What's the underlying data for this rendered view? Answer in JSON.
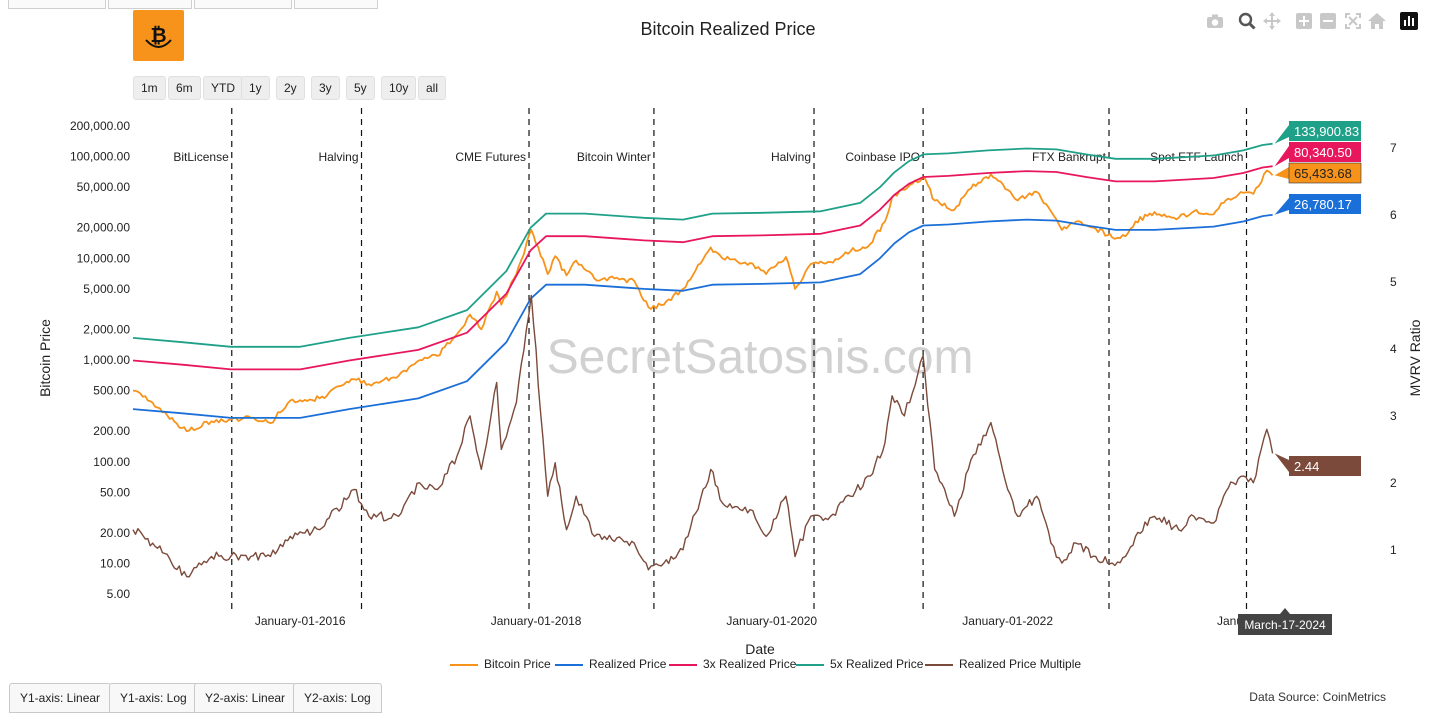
{
  "header": {
    "title": "Bitcoin Realized Price"
  },
  "range_buttons": [
    "1m",
    "6m",
    "YTD",
    "1y",
    "2y",
    "3y",
    "5y",
    "10y",
    "all"
  ],
  "modebar_icons": [
    "camera-icon",
    "zoom-icon",
    "pan-icon",
    "zoom-in-icon",
    "zoom-out-icon",
    "autoscale-icon",
    "home-icon",
    "logo-icon"
  ],
  "axis_buttons": [
    "Y1-axis: Linear",
    "Y1-axis: Log",
    "Y2-axis: Linear",
    "Y2-axis: Log"
  ],
  "source": "Data Source: CoinMetrics",
  "watermark": "SecretSatoshis.com",
  "colors": {
    "bitcoin_price": "#f7931a",
    "realized_price": "#1b6fd8",
    "realized_3x": "#e8175d",
    "realized_5x": "#1fa189",
    "multiple": "#7b4a3a",
    "hover_label": "#444444"
  },
  "chart_data": {
    "type": "line",
    "title": "Bitcoin Realized Price",
    "xlabel": "Date",
    "ylabel": "Bitcoin Price",
    "y2label": "MVRV Ratio",
    "y_scale": "log",
    "y_range": [
      3.5,
      300000
    ],
    "y2_range": [
      0.1,
      7.6
    ],
    "x_range": [
      "2014-08-01",
      "2024-04-30"
    ],
    "y_ticks": [
      5,
      10,
      20,
      50,
      100,
      200,
      500,
      1000,
      2000,
      5000,
      10000,
      20000,
      50000,
      100000,
      200000
    ],
    "y_tick_labels": [
      "5.00",
      "10.00",
      "20.00",
      "50.00",
      "100.00",
      "200.00",
      "500.00",
      "1,000.00",
      "2,000.00",
      "5,000.00",
      "10,000.00",
      "20,000.00",
      "50,000.00",
      "100,000.00",
      "200,000.00"
    ],
    "y2_ticks": [
      1,
      2,
      3,
      4,
      5,
      6,
      7
    ],
    "y2_tick_labels": [
      "1",
      "2",
      "3",
      "4",
      "5",
      "6",
      "7"
    ],
    "x_ticks": [
      "2016-01-01",
      "2018-01-01",
      "2020-01-01",
      "2022-01-01"
    ],
    "x_tick_labels": [
      "January-01-2016",
      "January-01-2018",
      "January-01-2020",
      "January-01-2022"
    ],
    "grid": false,
    "legend": "bottom",
    "annotations": [
      {
        "date": "2015-06-03",
        "label": "BitLicense"
      },
      {
        "date": "2016-07-09",
        "label": "Halving"
      },
      {
        "date": "2017-12-10",
        "label": "CME Futures"
      },
      {
        "date": "2019-01-01",
        "label": "Bitcoin Winter"
      },
      {
        "date": "2020-05-11",
        "label": "Halving"
      },
      {
        "date": "2021-04-14",
        "label": "Coinbase IPO"
      },
      {
        "date": "2022-11-11",
        "label": "FTX Bankrupt"
      },
      {
        "date": "2024-01-11",
        "label": "Spot ETF Launch"
      }
    ],
    "end_labels": [
      {
        "series": "5x Realized Price",
        "text": "133,900.83"
      },
      {
        "series": "3x Realized Price",
        "text": "80,340.50"
      },
      {
        "series": "Bitcoin Price",
        "text": "65,433.68"
      },
      {
        "series": "Realized Price",
        "text": "26,780.17"
      },
      {
        "series": "Realized Price Multiple",
        "text": "2.44"
      }
    ],
    "hover_date": "March-17-2024",
    "hover_date_partial": "Janu",
    "series": [
      {
        "name": "Bitcoin Price",
        "axis": "y1",
        "x": [
          "2014-08-01",
          "2014-10-01",
          "2015-01-14",
          "2015-04-01",
          "2015-08-01",
          "2015-10-01",
          "2015-12-01",
          "2016-03-01",
          "2016-06-15",
          "2016-08-01",
          "2016-11-01",
          "2017-01-05",
          "2017-03-01",
          "2017-05-01",
          "2017-06-10",
          "2017-07-15",
          "2017-09-01",
          "2017-09-15",
          "2017-11-01",
          "2017-12-17",
          "2018-02-06",
          "2018-03-01",
          "2018-04-05",
          "2018-05-05",
          "2018-07-01",
          "2018-08-01",
          "2018-11-01",
          "2018-12-15",
          "2019-02-01",
          "2019-04-01",
          "2019-06-26",
          "2019-08-01",
          "2019-10-26",
          "2019-12-15",
          "2020-02-14",
          "2020-03-13",
          "2020-05-01",
          "2020-07-01",
          "2020-09-01",
          "2020-11-01",
          "2020-12-17",
          "2021-01-08",
          "2021-02-15",
          "2021-04-14",
          "2021-05-20",
          "2021-07-20",
          "2021-09-01",
          "2021-11-10",
          "2022-01-01",
          "2022-02-01",
          "2022-04-01",
          "2022-05-15",
          "2022-06-18",
          "2022-08-01",
          "2022-10-01",
          "2022-11-21",
          "2023-01-01",
          "2023-02-01",
          "2023-04-01",
          "2023-06-15",
          "2023-08-01",
          "2023-10-01",
          "2023-11-01",
          "2023-12-01",
          "2024-01-01",
          "2024-02-01",
          "2024-03-14",
          "2024-04-01"
        ],
        "values": [
          500,
          380,
          200,
          250,
          270,
          240,
          400,
          420,
          650,
          580,
          700,
          1000,
          1100,
          1800,
          2800,
          2000,
          4700,
          3500,
          7000,
          19000,
          7000,
          10500,
          6800,
          9500,
          6300,
          6400,
          6000,
          3300,
          3500,
          5000,
          12800,
          10000,
          9000,
          7000,
          10300,
          5000,
          8800,
          9200,
          11700,
          13800,
          23000,
          40000,
          47000,
          63000,
          37000,
          30000,
          47000,
          67000,
          47000,
          37000,
          45000,
          29000,
          19000,
          23000,
          19500,
          16000,
          16500,
          23000,
          28500,
          25000,
          29000,
          27000,
          35000,
          39000,
          44000,
          43000,
          73000,
          65433.68
        ]
      },
      {
        "name": "Realized Price",
        "axis": "y1",
        "x": [
          "2014-08-01",
          "2015-01-01",
          "2015-06-01",
          "2016-01-01",
          "2016-06-01",
          "2017-01-01",
          "2017-06-01",
          "2017-10-01",
          "2017-12-15",
          "2018-02-01",
          "2018-06-01",
          "2018-12-01",
          "2019-04-01",
          "2019-07-01",
          "2019-12-01",
          "2020-06-01",
          "2020-10-01",
          "2020-12-01",
          "2021-01-15",
          "2021-03-01",
          "2021-04-15",
          "2021-07-01",
          "2021-11-01",
          "2022-03-01",
          "2022-06-01",
          "2022-09-01",
          "2022-12-01",
          "2023-04-01",
          "2023-10-01",
          "2024-01-01",
          "2024-03-01",
          "2024-04-01"
        ],
        "values": [
          330,
          300,
          270,
          270,
          330,
          420,
          620,
          1500,
          4000,
          5500,
          5500,
          5000,
          4800,
          5500,
          5600,
          5800,
          7000,
          10000,
          14000,
          18000,
          21000,
          21500,
          23000,
          24000,
          23500,
          21000,
          19000,
          19000,
          20500,
          23000,
          26000,
          26780.17
        ]
      },
      {
        "name": "3x Realized Price",
        "axis": "y1",
        "x": [
          "2014-08-01",
          "2015-01-01",
          "2015-06-01",
          "2016-01-01",
          "2016-06-01",
          "2017-01-01",
          "2017-06-01",
          "2017-10-01",
          "2017-12-15",
          "2018-02-01",
          "2018-06-01",
          "2018-12-01",
          "2019-04-01",
          "2019-07-01",
          "2019-12-01",
          "2020-06-01",
          "2020-10-01",
          "2020-12-01",
          "2021-01-15",
          "2021-03-01",
          "2021-04-15",
          "2021-07-01",
          "2021-11-01",
          "2022-03-01",
          "2022-06-01",
          "2022-09-01",
          "2022-12-01",
          "2023-04-01",
          "2023-10-01",
          "2024-01-01",
          "2024-03-01",
          "2024-04-01"
        ],
        "values": [
          990,
          900,
          810,
          810,
          990,
          1260,
          1860,
          4500,
          12000,
          16500,
          16500,
          15000,
          14400,
          16500,
          16800,
          17400,
          21000,
          30000,
          42000,
          54000,
          63000,
          64500,
          69000,
          72000,
          70500,
          63000,
          57000,
          57000,
          61500,
          69000,
          78000,
          80340.5
        ]
      },
      {
        "name": "5x Realized Price",
        "axis": "y1",
        "x": [
          "2014-08-01",
          "2015-01-01",
          "2015-06-01",
          "2016-01-01",
          "2016-06-01",
          "2017-01-01",
          "2017-06-01",
          "2017-10-01",
          "2017-12-15",
          "2018-02-01",
          "2018-06-01",
          "2018-12-01",
          "2019-04-01",
          "2019-07-01",
          "2019-12-01",
          "2020-06-01",
          "2020-10-01",
          "2020-12-01",
          "2021-01-15",
          "2021-03-01",
          "2021-04-15",
          "2021-07-01",
          "2021-11-01",
          "2022-03-01",
          "2022-06-01",
          "2022-09-01",
          "2022-12-01",
          "2023-04-01",
          "2023-10-01",
          "2024-01-01",
          "2024-03-01",
          "2024-04-01"
        ],
        "values": [
          1650,
          1500,
          1350,
          1350,
          1650,
          2100,
          3100,
          7500,
          20000,
          27500,
          27500,
          25000,
          24000,
          27500,
          28000,
          29000,
          35000,
          50000,
          70000,
          90000,
          105000,
          107500,
          115000,
          120000,
          117500,
          105000,
          95000,
          95000,
          102500,
          115000,
          130000,
          133900.83
        ]
      },
      {
        "name": "Realized Price Multiple",
        "axis": "y2",
        "x": [
          "2014-08-01",
          "2014-10-01",
          "2015-01-14",
          "2015-04-01",
          "2015-08-01",
          "2015-10-01",
          "2015-12-01",
          "2016-03-01",
          "2016-06-15",
          "2016-08-01",
          "2016-11-01",
          "2017-01-05",
          "2017-03-01",
          "2017-05-01",
          "2017-06-10",
          "2017-07-15",
          "2017-09-01",
          "2017-09-15",
          "2017-11-01",
          "2017-12-17",
          "2018-02-06",
          "2018-03-01",
          "2018-04-05",
          "2018-05-05",
          "2018-07-01",
          "2018-08-01",
          "2018-11-01",
          "2018-12-15",
          "2019-02-01",
          "2019-04-01",
          "2019-06-26",
          "2019-08-01",
          "2019-10-26",
          "2019-12-15",
          "2020-02-14",
          "2020-03-13",
          "2020-05-01",
          "2020-07-01",
          "2020-09-01",
          "2020-11-01",
          "2020-12-17",
          "2021-01-08",
          "2021-02-15",
          "2021-04-14",
          "2021-05-20",
          "2021-07-20",
          "2021-09-01",
          "2021-11-10",
          "2022-01-01",
          "2022-02-01",
          "2022-04-01",
          "2022-05-15",
          "2022-06-18",
          "2022-08-01",
          "2022-10-01",
          "2022-11-21",
          "2023-01-01",
          "2023-02-01",
          "2023-04-01",
          "2023-06-15",
          "2023-08-01",
          "2023-10-01",
          "2023-11-01",
          "2023-12-01",
          "2024-01-01",
          "2024-02-01",
          "2024-03-14",
          "2024-04-01"
        ],
        "values": [
          1.3,
          1.1,
          0.6,
          0.9,
          0.9,
          0.9,
          1.2,
          1.3,
          1.9,
          1.5,
          1.5,
          2.0,
          1.9,
          2.4,
          3.0,
          2.2,
          3.5,
          2.5,
          3.2,
          4.8,
          1.8,
          2.3,
          1.3,
          1.8,
          1.2,
          1.2,
          1.1,
          0.7,
          0.8,
          1.0,
          2.2,
          1.7,
          1.6,
          1.2,
          1.8,
          0.9,
          1.5,
          1.5,
          1.8,
          2.1,
          2.6,
          3.3,
          3.0,
          3.9,
          2.2,
          1.5,
          2.2,
          2.9,
          1.9,
          1.5,
          1.8,
          1.1,
          0.8,
          1.1,
          0.9,
          0.8,
          0.9,
          1.2,
          1.5,
          1.3,
          1.5,
          1.4,
          1.8,
          2.0,
          2.1,
          2.0,
          2.8,
          2.44
        ]
      }
    ]
  }
}
